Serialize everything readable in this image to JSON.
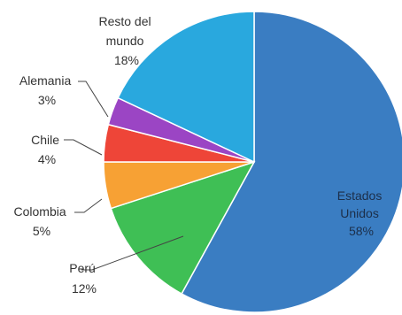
{
  "chart_data": {
    "type": "pie",
    "title": "",
    "start_angle_deg": 0,
    "direction": "clockwise",
    "slices": [
      {
        "label": [
          "Estados",
          "Unidos"
        ],
        "value": 58,
        "value_label": "58%",
        "color": "#3a7dc2"
      },
      {
        "label": [
          "Perú"
        ],
        "value": 12,
        "value_label": "12%",
        "color": "#3fbf55"
      },
      {
        "label": [
          "Colombia"
        ],
        "value": 5,
        "value_label": "5%",
        "color": "#f7a134"
      },
      {
        "label": [
          "Chile"
        ],
        "value": 4,
        "value_label": "4%",
        "color": "#ee4538"
      },
      {
        "label": [
          "Alemania"
        ],
        "value": 3,
        "value_label": "3%",
        "color": "#9b45c4"
      },
      {
        "label": [
          "Resto del",
          "mundo"
        ],
        "value": 18,
        "value_label": "18%",
        "color": "#29a8de"
      }
    ]
  }
}
